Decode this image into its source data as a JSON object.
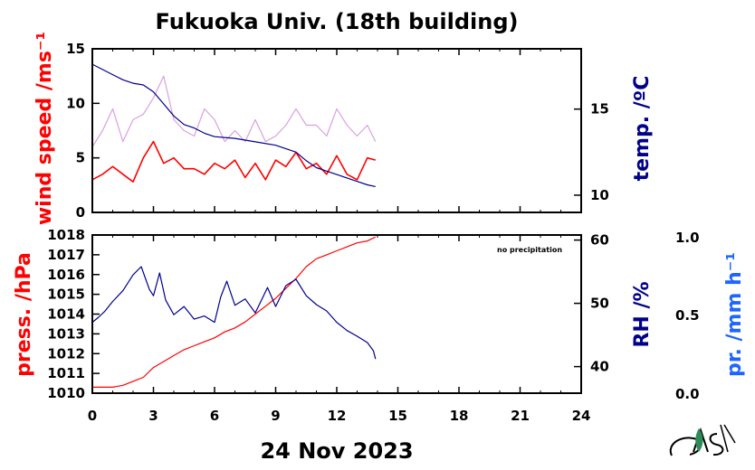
{
  "title": "Fukuoka Univ. (18th building)",
  "date_label": "24 Nov 2023",
  "annotation": "no precipitation",
  "colors": {
    "wind_line": "#ff0000",
    "wind_gust": "#d9a0e0",
    "temp_line": "#00008b",
    "pressure_line": "#ff0000",
    "rh_line": "#00008b",
    "precip_label": "#1e64ff",
    "axes": "#000000"
  },
  "chart_data": [
    {
      "type": "line",
      "panel": "upper",
      "xlabel": "",
      "xlim": [
        0,
        24
      ],
      "x_ticks": [
        0,
        3,
        6,
        9,
        12,
        15,
        18,
        21,
        24
      ],
      "left_axis": {
        "label": "wind speed /ms⁻¹",
        "ylim": [
          0,
          15
        ],
        "ticks": [
          0,
          5,
          10,
          15
        ]
      },
      "right_axis": {
        "label": "temp. /ºC",
        "ylim": [
          9,
          18.5
        ],
        "ticks": [
          10,
          15
        ]
      },
      "series": [
        {
          "axis": "left",
          "x": [
            0,
            0.5,
            1,
            1.5,
            2,
            2.5,
            3,
            3.5,
            4,
            4.5,
            5,
            5.5,
            6,
            6.5,
            7,
            7.5,
            8,
            8.5,
            9,
            9.5,
            10,
            10.5,
            11,
            11.5,
            12,
            12.5,
            13,
            13.5,
            13.9
          ],
          "y": [
            3,
            3.5,
            4.2,
            3.5,
            2.8,
            5,
            6.5,
            4.5,
            5,
            4,
            4,
            3.5,
            4.5,
            4,
            4.8,
            3.2,
            4.5,
            3,
            4.8,
            4.2,
            5.5,
            4,
            4.5,
            3.5,
            5.2,
            3.5,
            3,
            5,
            4.8
          ]
        },
        {
          "axis": "left",
          "x": [
            0,
            0.5,
            1,
            1.5,
            2,
            2.5,
            3,
            3.5,
            4,
            4.5,
            5,
            5.5,
            6,
            6.5,
            7,
            7.5,
            8,
            8.5,
            9,
            9.5,
            10,
            10.5,
            11,
            11.5,
            12,
            12.5,
            13,
            13.5,
            13.9
          ],
          "y": [
            6,
            7.5,
            9.5,
            6.5,
            8.5,
            9,
            10.5,
            12.5,
            8.5,
            7.5,
            7,
            9.5,
            8.5,
            6.5,
            7.5,
            6.5,
            8.5,
            6.5,
            7,
            8,
            9.5,
            8,
            8,
            7,
            9.5,
            8,
            7,
            8,
            6.5
          ]
        },
        {
          "axis": "right",
          "x": [
            0,
            0.5,
            1,
            1.5,
            2,
            2.5,
            3,
            3.5,
            4,
            4.5,
            5,
            5.5,
            6,
            7,
            8,
            9,
            10,
            10.5,
            11,
            11.5,
            12,
            12.5,
            13,
            13.5,
            13.9
          ],
          "y": [
            17.6,
            17.3,
            17.0,
            16.7,
            16.5,
            16.4,
            16.0,
            15.3,
            14.6,
            14.1,
            13.9,
            13.6,
            13.4,
            13.3,
            13.1,
            12.9,
            12.5,
            12.0,
            11.6,
            11.4,
            11.2,
            11.0,
            10.8,
            10.6,
            10.5
          ]
        }
      ]
    },
    {
      "type": "line",
      "panel": "lower",
      "xlabel": "",
      "xlim": [
        0,
        24
      ],
      "x_ticks": [
        0,
        3,
        6,
        9,
        12,
        15,
        18,
        21,
        24
      ],
      "x_tick_labels": [
        "0",
        "3",
        "6",
        "9",
        "12",
        "15",
        "18",
        "21",
        "24"
      ],
      "left_axis": {
        "label": "press. /hPa",
        "ylim": [
          1010,
          1018
        ],
        "ticks": [
          1010,
          1011,
          1012,
          1013,
          1014,
          1015,
          1016,
          1017,
          1018
        ]
      },
      "right_axis": {
        "label": "RH /%",
        "ylim": [
          35.8,
          60.8
        ],
        "ticks": [
          40,
          50,
          60
        ]
      },
      "precip_axis": {
        "label": "pr. /mm h⁻¹",
        "ylim": [
          0,
          1
        ],
        "ticks": [
          "0.0",
          "0.5",
          "1.0"
        ]
      },
      "series": [
        {
          "axis": "left",
          "x": [
            0,
            1,
            1.5,
            2,
            2.5,
            3,
            3.5,
            4,
            4.5,
            5,
            5.5,
            6,
            6.5,
            7,
            7.5,
            8,
            8.5,
            9,
            9.5,
            10,
            10.5,
            11,
            11.5,
            12,
            12.5,
            13,
            13.5,
            13.9
          ],
          "y": [
            1010.3,
            1010.3,
            1010.4,
            1010.6,
            1010.8,
            1011.3,
            1011.6,
            1011.9,
            1012.2,
            1012.4,
            1012.6,
            1012.8,
            1013.1,
            1013.3,
            1013.6,
            1014.0,
            1014.4,
            1014.8,
            1015.3,
            1015.8,
            1016.4,
            1016.8,
            1017.0,
            1017.2,
            1017.4,
            1017.6,
            1017.7,
            1017.9
          ]
        },
        {
          "axis": "right",
          "x": [
            0,
            0.3,
            0.6,
            1,
            1.5,
            2,
            2.4,
            2.8,
            3,
            3.3,
            3.6,
            4,
            4.5,
            5,
            5.5,
            6,
            6.3,
            6.6,
            7,
            7.5,
            8,
            8.3,
            8.6,
            9,
            9.5,
            10,
            10.5,
            11,
            11.5,
            12,
            12.5,
            13,
            13.5,
            13.8,
            13.9
          ],
          "y": [
            47,
            47.8,
            48.7,
            50.3,
            52,
            54.5,
            55.8,
            52.2,
            51.2,
            54.8,
            50.5,
            48.2,
            49.5,
            47.5,
            48,
            47,
            51,
            53.5,
            49.7,
            50.7,
            48.5,
            50.5,
            52.5,
            49.5,
            52.8,
            53.8,
            51.2,
            49.8,
            48.8,
            47,
            45.7,
            44.8,
            43.8,
            42.5,
            41.2
          ]
        }
      ]
    }
  ]
}
